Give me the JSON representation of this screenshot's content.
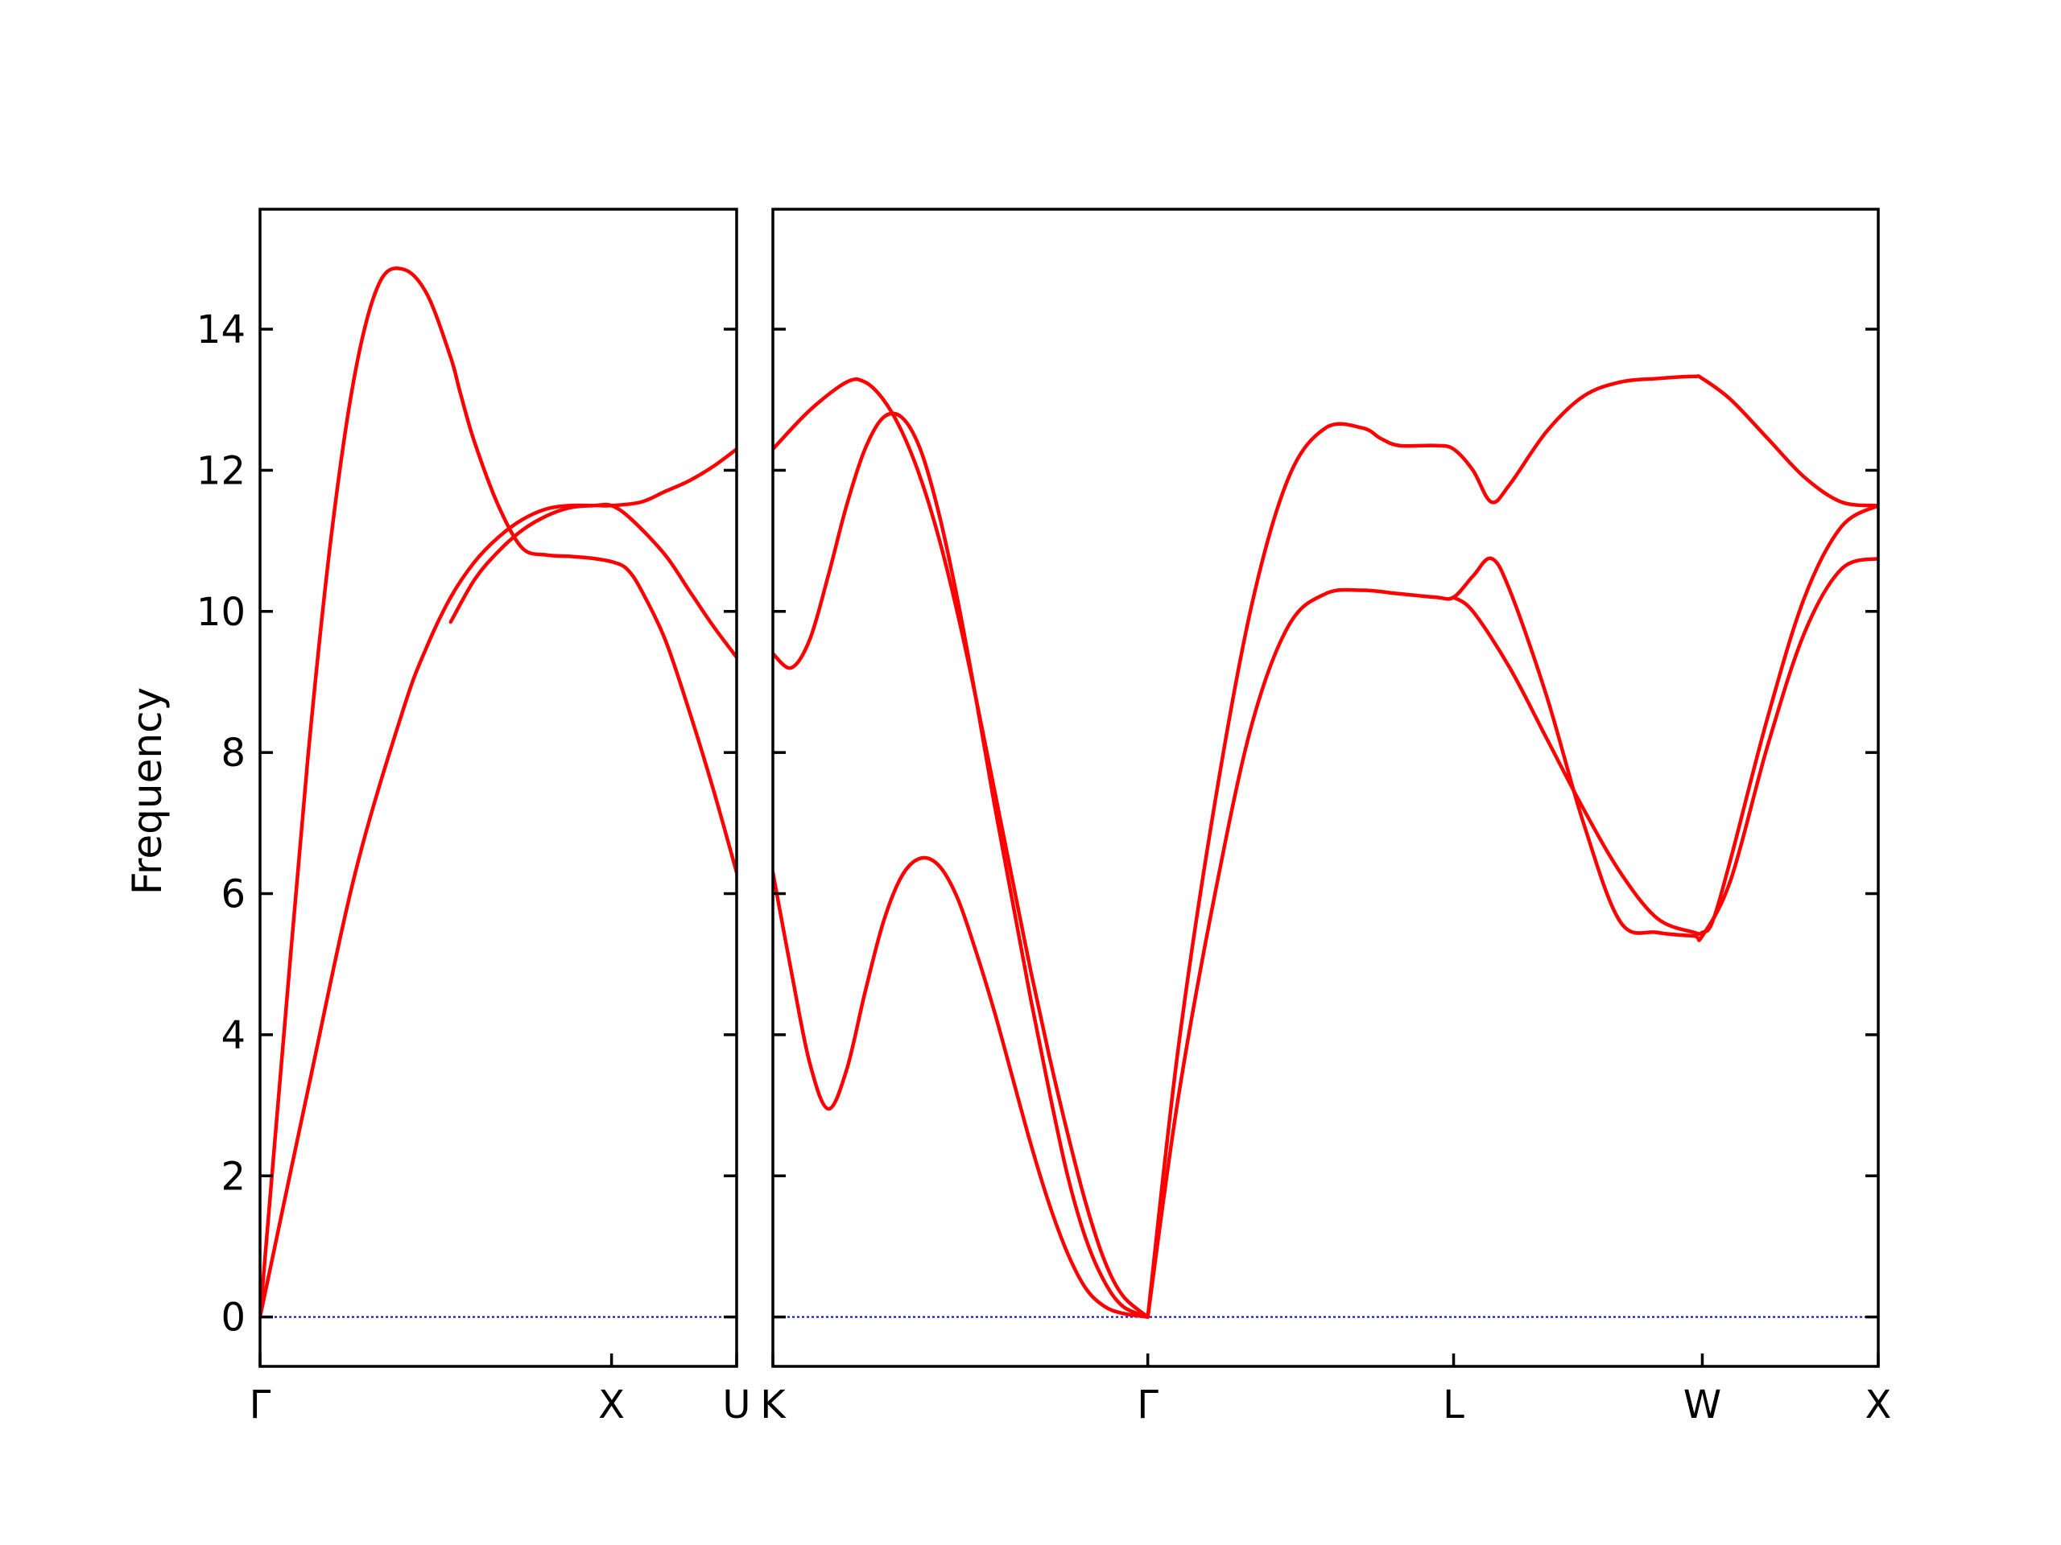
{
  "chart_data": {
    "type": "line",
    "ylabel": "Frequency",
    "ylim": [
      -0.7,
      15.7
    ],
    "yticks": [
      0,
      2,
      4,
      6,
      8,
      10,
      12,
      14
    ],
    "grid": false,
    "legend": "none",
    "colors": {
      "bands": "#ff0000",
      "zero_line": "#0000cc",
      "frame": "#000000"
    },
    "panels": [
      {
        "name": "Γ-X-U",
        "path_length": 1.0,
        "xticks": [
          {
            "label": "Γ",
            "pos": 0.0
          },
          {
            "label": "X",
            "pos": 0.7375
          },
          {
            "label": "U",
            "pos": 1.0
          }
        ],
        "series": [
          {
            "x": [
              0,
              0.05,
              0.1,
              0.15,
              0.2,
              0.25,
              0.3,
              0.35,
              0.4,
              0.42,
              0.45,
              0.5,
              0.55,
              0.6,
              0.65,
              0.7,
              0.74,
              0.77,
              0.8,
              0.85,
              0.9,
              0.95,
              1.0
            ],
            "y": [
              0,
              4.0,
              7.9,
              11.1,
              13.4,
              14.65,
              14.85,
              14.5,
              13.6,
              13.1,
              12.4,
              11.5,
              10.9,
              10.8,
              10.78,
              10.75,
              10.7,
              10.6,
              10.3,
              9.6,
              8.6,
              7.5,
              6.3
            ]
          },
          {
            "x": [
              0,
              0.1,
              0.2,
              0.3,
              0.35,
              0.4,
              0.45,
              0.5,
              0.55,
              0.6,
              0.65,
              0.7,
              0.7375,
              0.78,
              0.85,
              0.9,
              0.95,
              1.0
            ],
            "y": [
              0,
              3.2,
              6.3,
              8.6,
              9.5,
              10.2,
              10.7,
              11.05,
              11.3,
              11.45,
              11.5,
              11.5,
              11.5,
              11.3,
              10.8,
              10.3,
              9.8,
              9.35
            ]
          },
          {
            "x": [
              0.4,
              0.45,
              0.5,
              0.55,
              0.6,
              0.65,
              0.7,
              0.7375,
              0.8,
              0.85,
              0.9,
              0.95,
              1.0
            ],
            "y": [
              9.85,
              10.45,
              10.85,
              11.15,
              11.35,
              11.47,
              11.5,
              11.5,
              11.55,
              11.7,
              11.85,
              12.05,
              12.3
            ]
          }
        ]
      },
      {
        "name": "K-Γ-L-W-X",
        "path_length": 3.0,
        "xticks": [
          {
            "label": "K",
            "pos": 0.0
          },
          {
            "label": "Γ",
            "pos": 1.0175
          },
          {
            "label": "L",
            "pos": 1.8475
          },
          {
            "label": "W",
            "pos": 2.5225
          },
          {
            "label": "X",
            "pos": 3.0
          }
        ],
        "series": [
          {
            "x": [
              0,
              0.05,
              0.1,
              0.15,
              0.2,
              0.25,
              0.3,
              0.35,
              0.4,
              0.45,
              0.5,
              0.55,
              0.6,
              0.65,
              0.7,
              0.75,
              0.8,
              0.85,
              0.9,
              0.95,
              1.0175
            ],
            "y": [
              6.3,
              4.9,
              3.6,
              2.95,
              3.5,
              4.6,
              5.6,
              6.25,
              6.5,
              6.4,
              5.95,
              5.2,
              4.35,
              3.4,
              2.45,
              1.6,
              0.9,
              0.4,
              0.15,
              0.05,
              0
            ]
          },
          {
            "x": [
              0,
              0.05,
              0.1,
              0.15,
              0.2,
              0.25,
              0.3,
              0.35,
              0.4,
              0.45,
              0.5,
              0.55,
              0.6,
              0.65,
              0.7,
              0.75,
              0.8,
              0.85,
              0.9,
              0.95,
              1.0175
            ],
            "y": [
              9.4,
              9.2,
              9.6,
              10.5,
              11.5,
              12.3,
              12.75,
              12.75,
              12.3,
              11.4,
              10.2,
              8.8,
              7.3,
              5.9,
              4.5,
              3.2,
              2.0,
              1.1,
              0.5,
              0.15,
              0
            ]
          },
          {
            "x": [
              0,
              0.1,
              0.2,
              0.25,
              0.3,
              0.35,
              0.4,
              0.45,
              0.5,
              0.55,
              0.6,
              0.65,
              0.7,
              0.75,
              0.8,
              0.85,
              0.9,
              0.95,
              1.0175
            ],
            "y": [
              12.3,
              12.85,
              13.25,
              13.25,
              13.0,
              12.55,
              11.9,
              11.05,
              10.0,
              8.8,
              7.5,
              6.2,
              4.9,
              3.7,
              2.6,
              1.6,
              0.8,
              0.3,
              0
            ]
          },
          {
            "x": [
              1.0175,
              1.1,
              1.2,
              1.3,
              1.4,
              1.5,
              1.6,
              1.65,
              1.7,
              1.8,
              1.8475,
              1.9,
              1.95,
              2.0,
              2.1,
              2.2,
              2.3,
              2.4,
              2.5,
              2.5225,
              2.6,
              2.7,
              2.8,
              2.9,
              3.0
            ],
            "y": [
              0,
              3.8,
              7.3,
              10.1,
              11.9,
              12.6,
              12.6,
              12.45,
              12.35,
              12.35,
              12.3,
              12.0,
              11.55,
              11.8,
              12.55,
              13.05,
              13.25,
              13.3,
              13.33,
              13.3,
              13.0,
              12.45,
              11.9,
              11.55,
              11.5
            ]
          },
          {
            "x": [
              1.0175,
              1.1,
              1.2,
              1.3,
              1.4,
              1.5,
              1.6,
              1.7,
              1.8,
              1.8475,
              1.9,
              1.95,
              2.0,
              2.1,
              2.2,
              2.3,
              2.4,
              2.5,
              2.5225,
              2.6,
              2.7,
              2.8,
              2.9,
              3.0
            ],
            "y": [
              0,
              3.1,
              6.0,
              8.4,
              9.8,
              10.25,
              10.3,
              10.25,
              10.2,
              10.2,
              10.5,
              10.75,
              10.3,
              8.8,
              7.0,
              5.6,
              5.45,
              5.4,
              5.4,
              6.2,
              8.1,
              9.7,
              10.6,
              10.75
            ]
          },
          {
            "x": [
              1.8475,
              1.9,
              2.0,
              2.1,
              2.2,
              2.3,
              2.4,
              2.5,
              2.5225,
              2.55,
              2.6,
              2.7,
              2.8,
              2.9,
              3.0
            ],
            "y": [
              10.2,
              10.0,
              9.2,
              8.2,
              7.2,
              6.3,
              5.65,
              5.45,
              5.45,
              5.6,
              6.5,
              8.5,
              10.2,
              11.2,
              11.5
            ]
          }
        ]
      }
    ]
  }
}
